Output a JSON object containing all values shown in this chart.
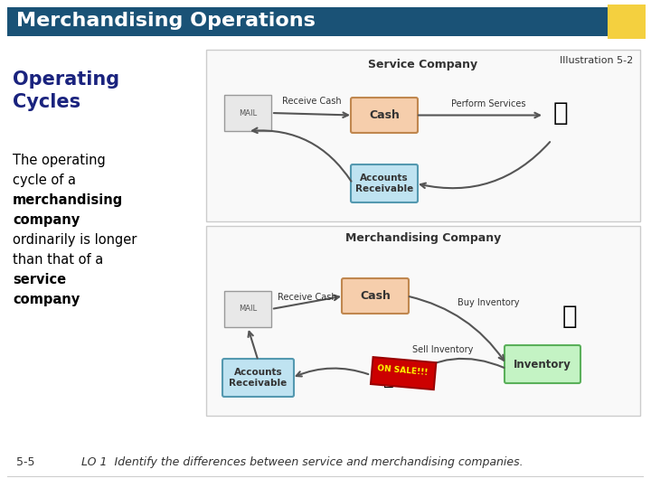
{
  "title": "Merchandising Operations",
  "illustration_label": "Illustration 5-2",
  "subtitle": "Operating Cycles",
  "body_text_parts": [
    {
      "text": "The operating\ncycle of a\n",
      "bold": false
    },
    {
      "text": "merchandising\ncompany\n",
      "bold": true
    },
    {
      "text": "ordinarily is longer\nthan that of a\n",
      "bold": false
    },
    {
      "text": "service\ncompany",
      "bold": true
    },
    {
      "text": ".",
      "bold": false
    }
  ],
  "footer_number": "5-5",
  "footer_text": "LO 1  Identify the differences between service and merchandising companies.",
  "header_bg": "#1a5276",
  "header_text_color": "#ffffff",
  "yellow_square_color": "#f4d03f",
  "subtitle_color": "#1a237e",
  "body_color": "#000000",
  "footer_color": "#000000",
  "bg_color": "#ffffff",
  "diagram_bg": "#f5f5f5",
  "service_company_label": "Service Company",
  "merchandising_company_label": "Merchandising Company",
  "service_boxes": [
    {
      "label": "Cash",
      "color": "#f4a460"
    },
    {
      "label": "Accounts\nReceivable",
      "color": "#87ceeb"
    }
  ],
  "merch_boxes": [
    {
      "label": "Cash",
      "color": "#f4a460"
    },
    {
      "label": "Accounts\nReceivable",
      "color": "#87ceeb"
    },
    {
      "label": "Inventory",
      "color": "#90ee90"
    }
  ]
}
